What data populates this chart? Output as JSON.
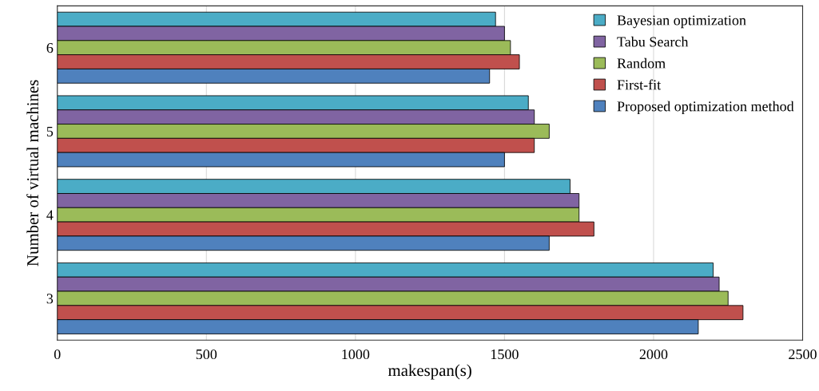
{
  "chart_data": {
    "type": "bar",
    "orientation": "horizontal",
    "xlabel": "makespan(s)",
    "ylabel": "Number of virtual machines",
    "categories": [
      "6",
      "5",
      "4",
      "3"
    ],
    "series": [
      {
        "name": "Bayesian optimization",
        "color": "#4bacc6",
        "values": [
          1470,
          1580,
          1720,
          2200
        ]
      },
      {
        "name": "Tabu Search",
        "color": "#8064a2",
        "values": [
          1500,
          1600,
          1750,
          2220
        ]
      },
      {
        "name": "Random",
        "color": "#9bbb59",
        "values": [
          1520,
          1650,
          1750,
          2250
        ]
      },
      {
        "name": "First-fit",
        "color": "#c0504d",
        "values": [
          1550,
          1600,
          1800,
          2300
        ]
      },
      {
        "name": "Proposed optimization method",
        "color": "#4f81bd",
        "values": [
          1450,
          1500,
          1650,
          2150
        ]
      }
    ],
    "xlim": [
      0,
      2500
    ],
    "xticks": [
      0,
      500,
      1000,
      1500,
      2000,
      2500
    ],
    "grid": "x",
    "legend": "top right"
  }
}
